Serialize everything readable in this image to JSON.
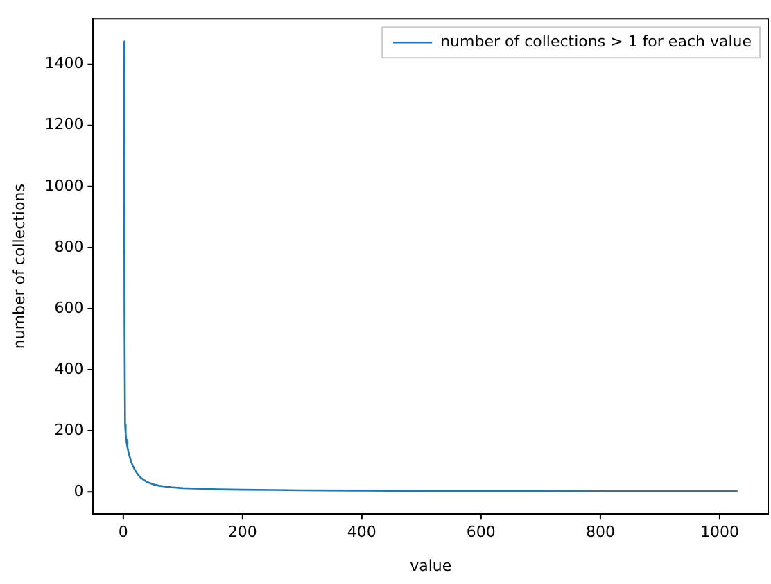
{
  "chart_data": {
    "type": "line",
    "xlabel": "value",
    "ylabel": "number of collections",
    "x": [
      1,
      2,
      3,
      4,
      5,
      7,
      10,
      13,
      16,
      20,
      25,
      30,
      40,
      50,
      60,
      80,
      100,
      130,
      160,
      200,
      250,
      300,
      400,
      500,
      600,
      700,
      800,
      900,
      1000,
      1030
    ],
    "series": [
      {
        "name": "number of collections > 1 for each value",
        "color": "#1f77b4",
        "values": [
          1475,
          560,
          220,
          190,
          170,
          145,
          120,
          100,
          85,
          70,
          55,
          45,
          32,
          25,
          20,
          15,
          12,
          10,
          8,
          7,
          6,
          5,
          4,
          3,
          3,
          3,
          2,
          2,
          2,
          2
        ]
      }
    ],
    "xlim": [
      -50.5,
      1081.5
    ],
    "xticks": [
      0,
      200,
      400,
      600,
      800,
      1000
    ],
    "ylim": [
      -72.7,
      1548.7
    ],
    "yticks": [
      0,
      200,
      400,
      600,
      800,
      1000,
      1200,
      1400
    ],
    "legend": "top right",
    "grid": false,
    "marker": "none",
    "line_style": "solid"
  }
}
